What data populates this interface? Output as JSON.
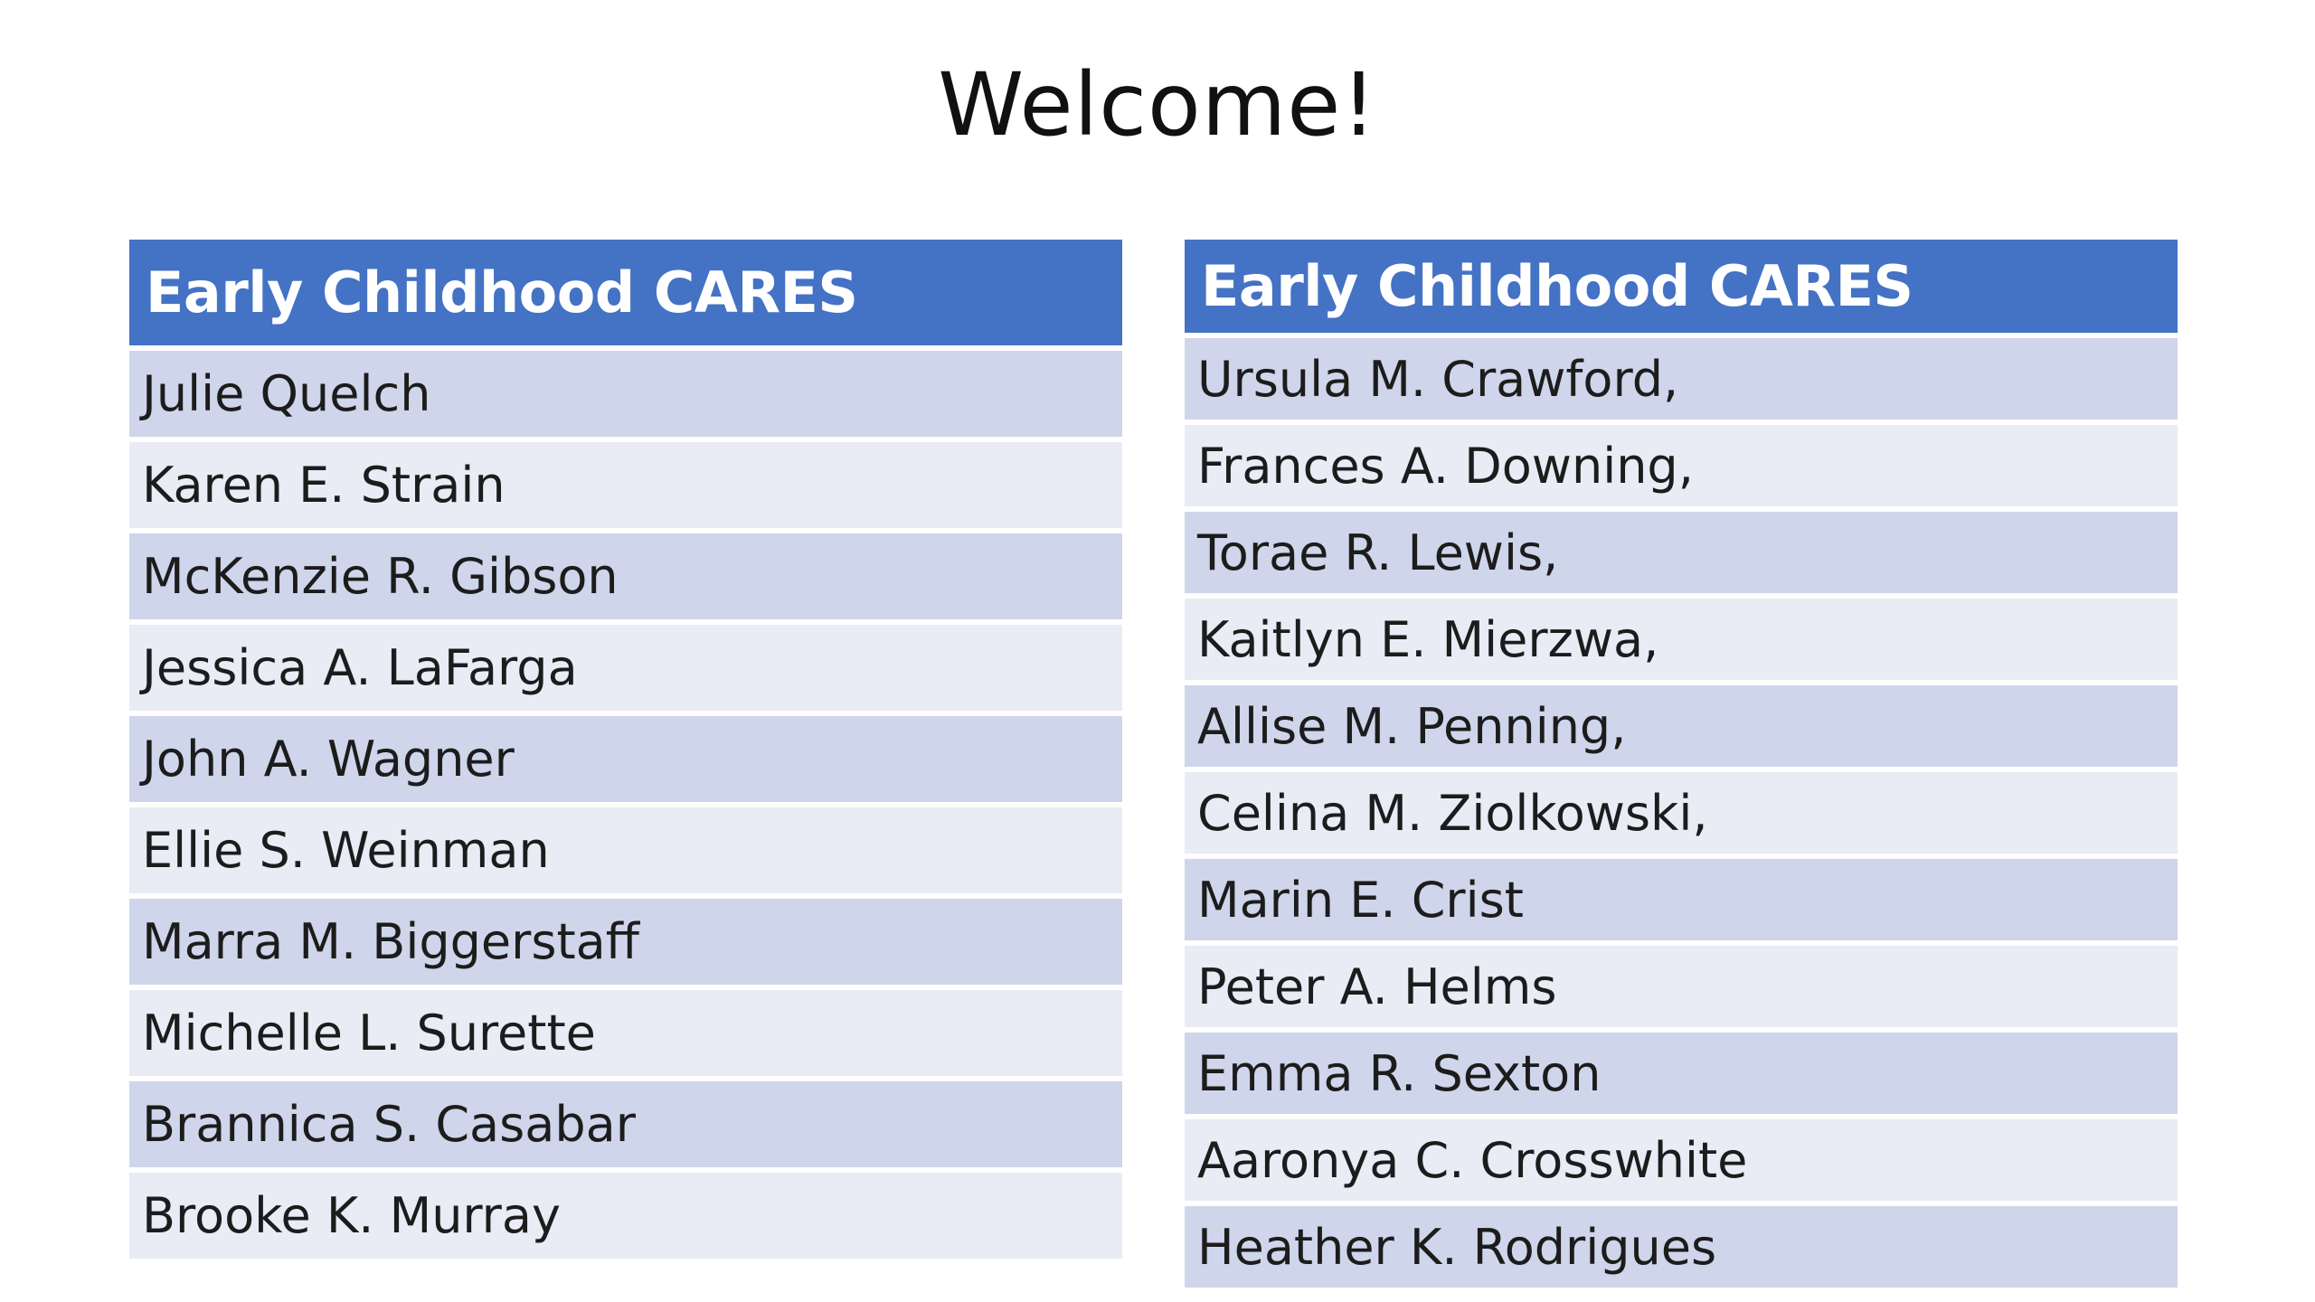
{
  "slide": {
    "title": "Welcome!"
  },
  "colors": {
    "header_bg": "#4472c4",
    "row_odd": "#cfd5ea",
    "row_even": "#e9ebf5"
  },
  "tables": [
    {
      "header": "Early Childhood CARES",
      "rows": [
        "Julie Quelch",
        "Karen E. Strain",
        "McKenzie R. Gibson",
        "Jessica A. LaFarga",
        "John A. Wagner",
        "Ellie S. Weinman",
        "Marra M. Biggerstaff",
        "Michelle L. Surette",
        "Brannica S. Casabar",
        "Brooke K. Murray"
      ]
    },
    {
      "header": "Early Childhood CARES",
      "rows": [
        "Ursula M. Crawford,",
        "Frances A. Downing,",
        "Torae R. Lewis,",
        "Kaitlyn E. Mierzwa,",
        "Allise M. Penning,",
        "Celina M. Ziolkowski,",
        "Marin E. Crist",
        "Peter A. Helms",
        "Emma R. Sexton",
        "Aaronya C. Crosswhite",
        "Heather K. Rodrigues"
      ]
    }
  ]
}
